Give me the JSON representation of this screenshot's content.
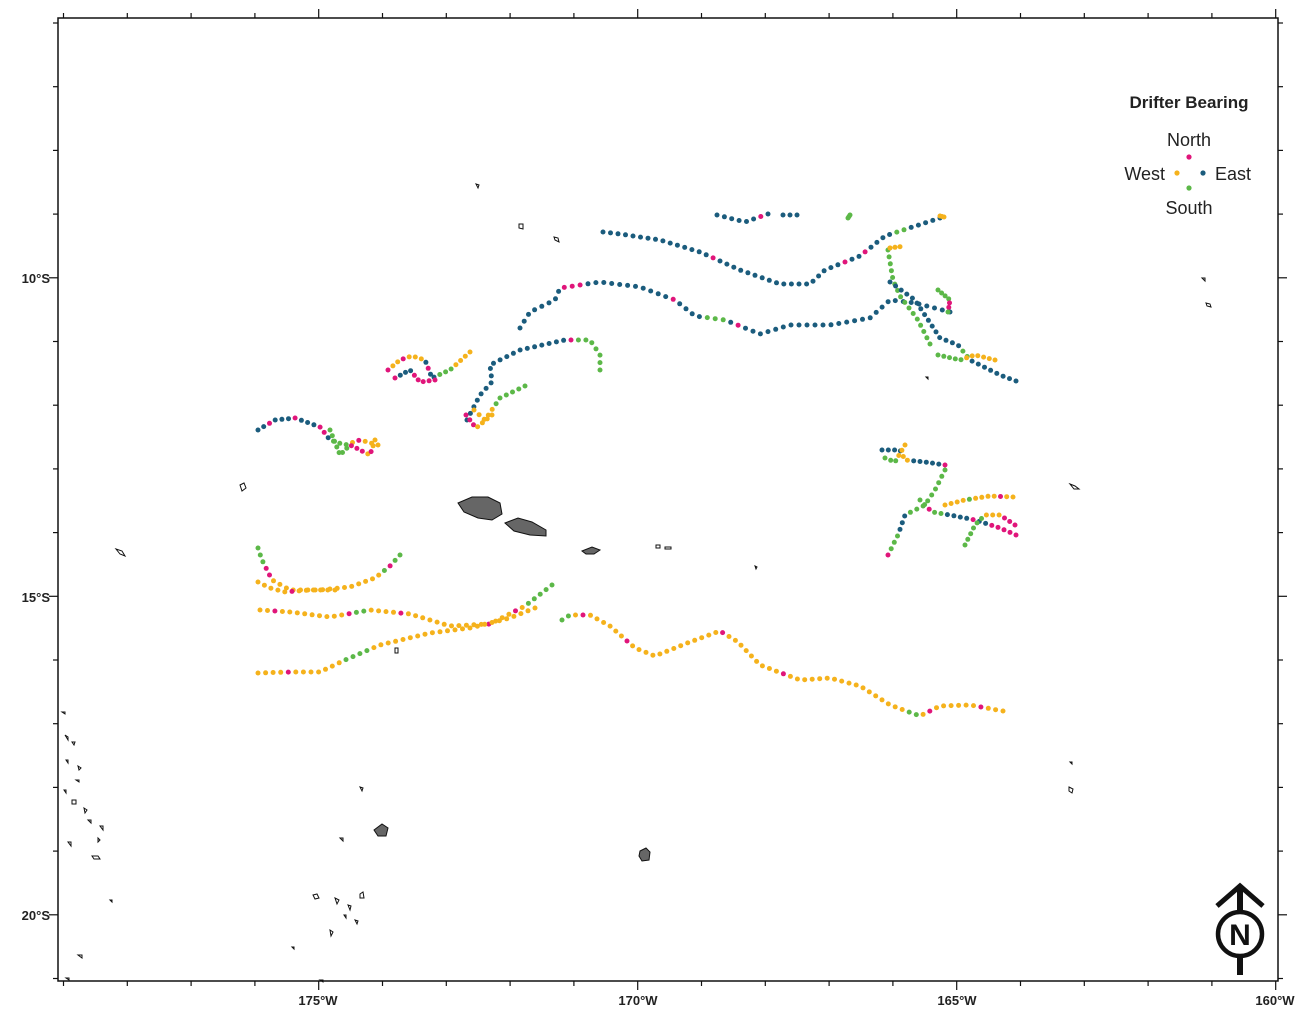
{
  "map": {
    "axes": {
      "x_ticks": [
        {
          "label": "175°W",
          "lon": -175
        },
        {
          "label": "170°W",
          "lon": -170
        },
        {
          "label": "165°W",
          "lon": -165
        },
        {
          "label": "160°W",
          "lon": -160
        }
      ],
      "y_ticks": [
        {
          "label": "10°S",
          "lat": -10
        },
        {
          "label": "15°S",
          "lat": -15
        },
        {
          "label": "20°S",
          "lat": -20
        }
      ],
      "lon_range": [
        -179,
        -160
      ],
      "lat_range": [
        -6.1,
        -21.1
      ]
    },
    "legend": {
      "title": "Drifter Bearing",
      "north": "North",
      "south": "South",
      "west": "West",
      "east": "East"
    },
    "north_arrow": {
      "letter": "N"
    },
    "colors": {
      "north": "#e0157a",
      "east": "#1b5c7d",
      "south": "#5cb848",
      "west": "#f5b21c",
      "land": "#666666",
      "frame": "#111111"
    },
    "islands": [
      "land-mass-upolu",
      "land-mass-savaii",
      "land-mass-niue",
      "land-mass-small-islets"
    ]
  }
}
